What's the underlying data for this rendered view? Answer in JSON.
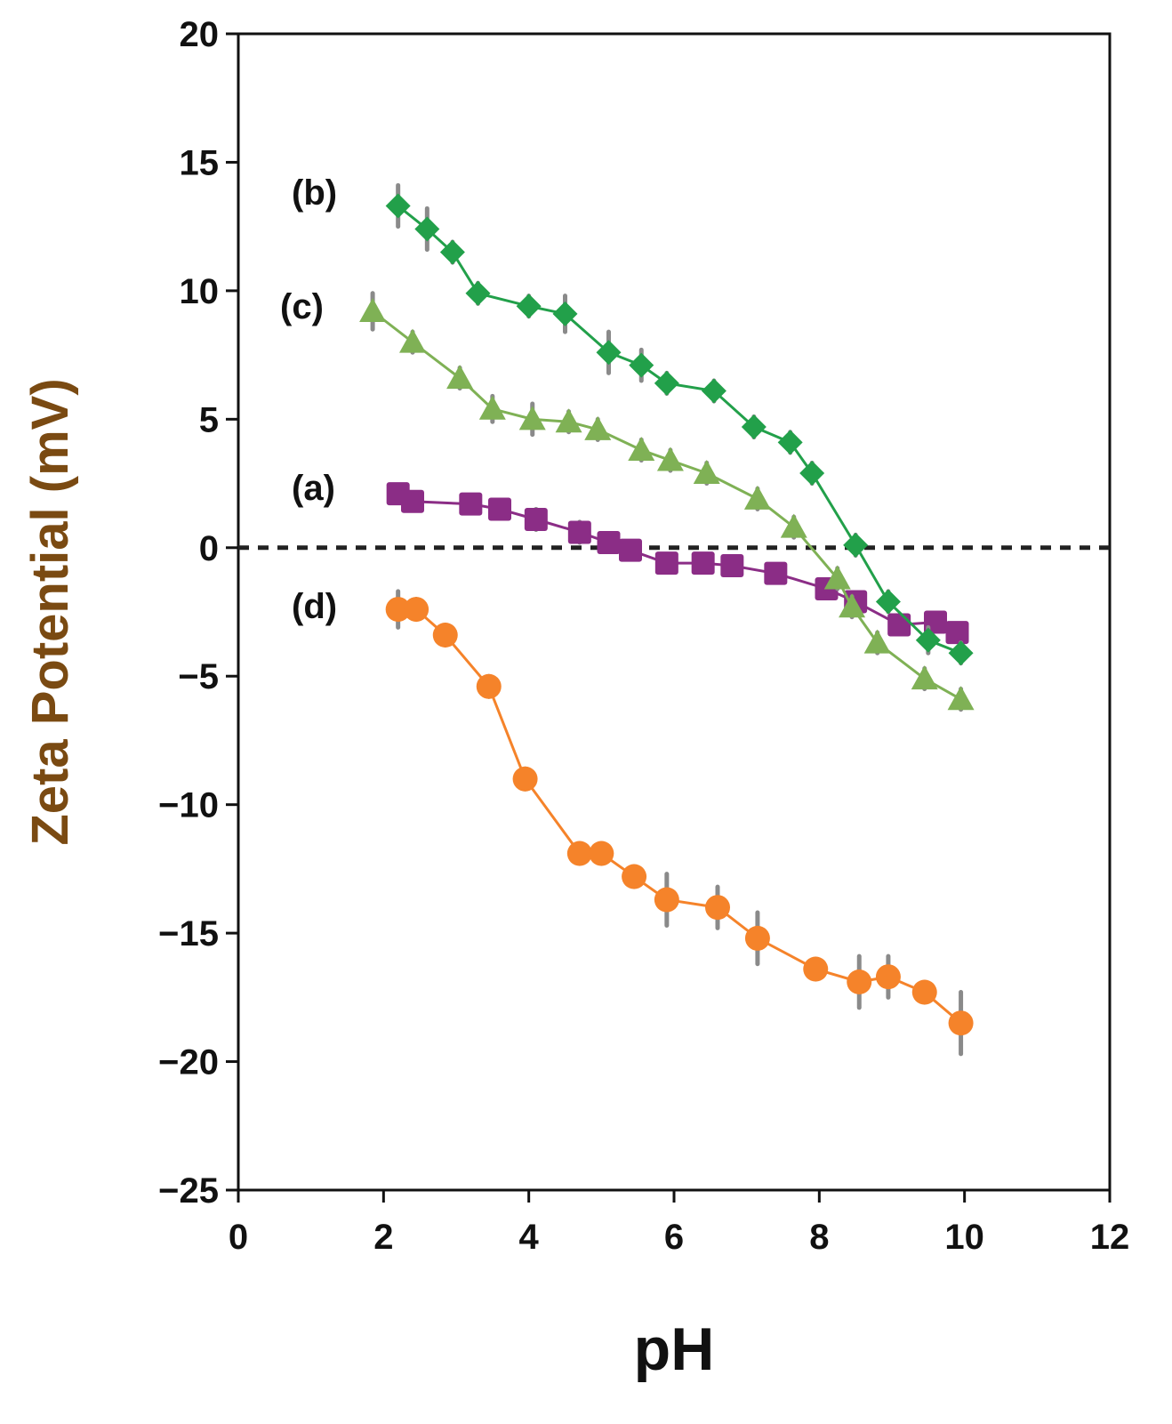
{
  "chart_data": {
    "type": "line",
    "title": "",
    "xlabel": "pH",
    "ylabel": "Zeta Potential (mV)",
    "xlim": [
      0,
      12
    ],
    "ylim": [
      -25,
      20
    ],
    "xticks": [
      0,
      2,
      4,
      6,
      8,
      10,
      12
    ],
    "yticks": [
      20,
      15,
      10,
      5,
      0,
      -5,
      -10,
      -15,
      -20,
      -25
    ],
    "ytick_labels": [
      "20",
      "15",
      "10",
      "5",
      "0",
      "−5",
      "−10",
      "−15",
      "−20",
      "−25"
    ],
    "grid": false,
    "reference_line": {
      "y": 0,
      "style": "dashed"
    },
    "colors": {
      "axis": "#111111",
      "ylabel": "#7a4a12",
      "xlabel": "#111111"
    },
    "series": [
      {
        "name": "(a)",
        "marker": "square",
        "color": "#8b2d86",
        "x": [
          2.2,
          2.4,
          3.2,
          3.6,
          4.1,
          4.7,
          5.1,
          5.4,
          5.9,
          6.4,
          6.8,
          7.4,
          8.1,
          8.5,
          9.1,
          9.6,
          9.9
        ],
        "y": [
          2.1,
          1.8,
          1.7,
          1.5,
          1.1,
          0.6,
          0.2,
          -0.1,
          -0.6,
          -0.6,
          -0.7,
          -1.0,
          -1.6,
          -2.1,
          -3.0,
          -2.9,
          -3.3
        ],
        "err": [
          0.3,
          0.3,
          0.3,
          0.3,
          0.4,
          0.4,
          0.3,
          0.3,
          0.3,
          0.3,
          0.3,
          0.3,
          0.3,
          0.3,
          0.3,
          0.3,
          0.3
        ]
      },
      {
        "name": "(b)",
        "marker": "diamond",
        "color": "#22a04a",
        "x": [
          2.2,
          2.6,
          2.95,
          3.3,
          4.0,
          4.5,
          5.1,
          5.55,
          5.9,
          6.55,
          7.1,
          7.6,
          7.9,
          8.5,
          8.95,
          9.5,
          9.95
        ],
        "y": [
          13.3,
          12.4,
          11.5,
          9.9,
          9.4,
          9.1,
          7.6,
          7.1,
          6.4,
          6.1,
          4.7,
          4.1,
          2.9,
          0.1,
          -2.1,
          -3.6,
          -4.1
        ],
        "err": [
          0.8,
          0.8,
          0.4,
          0.4,
          0.4,
          0.7,
          0.8,
          0.6,
          0.4,
          0.4,
          0.4,
          0.4,
          0.4,
          0.4,
          0.4,
          0.5,
          0.4
        ]
      },
      {
        "name": "(c)",
        "marker": "triangle",
        "color": "#7fb155",
        "x": [
          1.85,
          2.4,
          3.05,
          3.5,
          4.05,
          4.55,
          4.95,
          5.55,
          5.95,
          6.45,
          7.15,
          7.65,
          8.25,
          8.45,
          8.8,
          9.45,
          9.95
        ],
        "y": [
          9.2,
          8.0,
          6.6,
          5.4,
          5.0,
          4.9,
          4.6,
          3.8,
          3.4,
          2.9,
          1.9,
          0.8,
          -1.2,
          -2.3,
          -3.7,
          -5.1,
          -5.9
        ],
        "err": [
          0.7,
          0.4,
          0.4,
          0.5,
          0.6,
          0.4,
          0.4,
          0.4,
          0.4,
          0.4,
          0.4,
          0.4,
          0.4,
          0.4,
          0.4,
          0.4,
          0.4
        ]
      },
      {
        "name": "(d)",
        "marker": "circle",
        "color": "#f5832a",
        "x": [
          2.2,
          2.45,
          2.85,
          3.45,
          3.95,
          4.7,
          5.0,
          5.45,
          5.9,
          6.6,
          7.15,
          7.95,
          8.55,
          8.95,
          9.45,
          9.95
        ],
        "y": [
          -2.4,
          -2.4,
          -3.4,
          -5.4,
          -9.0,
          -11.9,
          -11.9,
          -12.8,
          -13.7,
          -14.0,
          -15.2,
          -16.4,
          -16.9,
          -16.7,
          -17.3,
          -18.5
        ],
        "err": [
          0.7,
          0.4,
          0.4,
          0.4,
          0.4,
          0.4,
          0.4,
          0.4,
          1.0,
          0.8,
          1.0,
          0.4,
          1.0,
          0.8,
          0.4,
          1.2
        ]
      }
    ],
    "annotations": [
      "(b)",
      "(c)",
      "(a)",
      "(d)"
    ]
  }
}
